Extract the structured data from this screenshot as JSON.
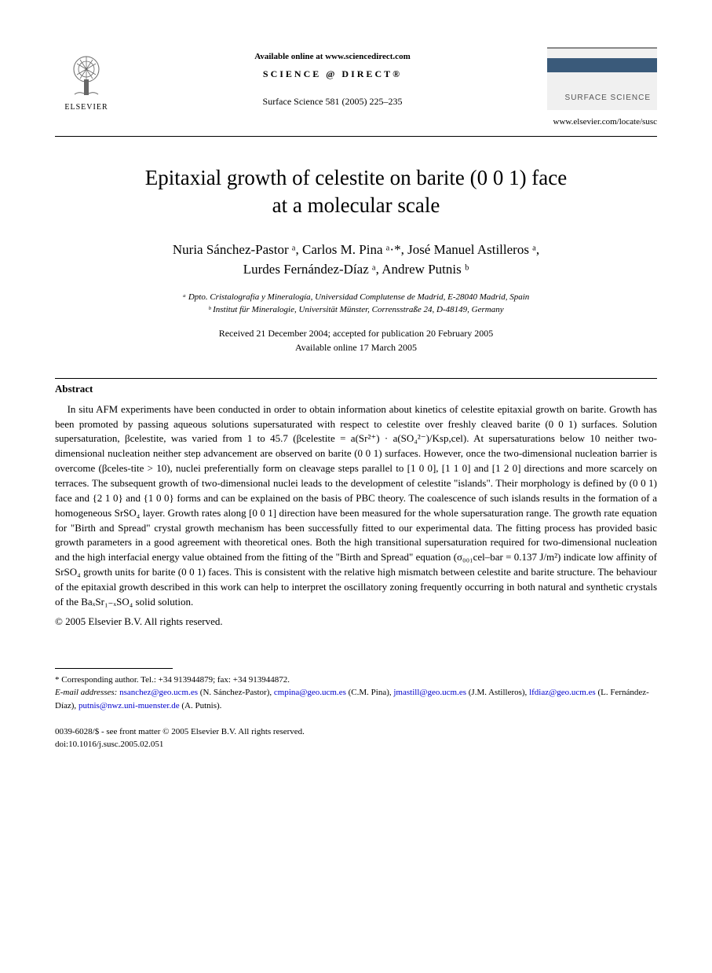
{
  "header": {
    "elsevier_label": "ELSEVIER",
    "available_online": "Available online at www.sciencedirect.com",
    "sciencedirect": "SCIENCE @ DIRECT®",
    "journal_ref": "Surface Science 581 (2005) 225–235",
    "journal_box_title": "SURFACE SCIENCE",
    "journal_url": "www.elsevier.com/locate/susc"
  },
  "title_line1": "Epitaxial growth of celestite on barite (0 0 1) face",
  "title_line2": "at a molecular scale",
  "authors_line1": "Nuria Sánchez-Pastor ᵃ, Carlos M. Pina ᵃ·*, José Manuel Astilleros ᵃ,",
  "authors_line2": "Lurdes Fernández-Díaz ᵃ, Andrew Putnis ᵇ",
  "affiliation_a": "ᵃ Dpto. Cristalografía y Mineralogía, Universidad Complutense de Madrid, E-28040 Madrid, Spain",
  "affiliation_b": "ᵇ Institut für Mineralogie, Universität Münster, Corrensstraße 24, D-48149, Germany",
  "dates_line1": "Received 21 December 2004; accepted for publication 20 February 2005",
  "dates_line2": "Available online 17 March 2005",
  "abstract_heading": "Abstract",
  "abstract_body": "In situ AFM experiments have been conducted in order to obtain information about kinetics of celestite epitaxial growth on barite. Growth has been promoted by passing aqueous solutions supersaturated with respect to celestite over freshly cleaved barite (0 0 1) surfaces. Solution supersaturation, βcelestite, was varied from 1 to 45.7 (βcelestite = a(Sr²⁺) · a(SO₄²⁻)/Ksp,cel). At supersaturations below 10 neither two-dimensional nucleation neither step advancement are observed on barite (0 0 1) surfaces. However, once the two-dimensional nucleation barrier is overcome (βceles-tite > 10), nuclei preferentially form on cleavage steps parallel to [1 0 0], [1 1 0] and [1 2 0] directions and more scarcely on terraces. The subsequent growth of two-dimensional nuclei leads to the development of celestite \"islands\". Their morphology is defined by (0 0 1) face and {2 1 0} and {1 0 0} forms and can be explained on the basis of PBC theory. The coalescence of such islands results in the formation of a homogeneous SrSO₄ layer. Growth rates along [0 0 1] direction have been measured for the whole supersaturation range. The growth rate equation for \"Birth and Spread\" crystal growth mechanism has been successfully fitted to our experimental data. The fitting process has provided basic growth parameters in a good agreement with theoretical ones. Both the high transitional supersaturation required for two-dimensional nucleation and the high interfacial energy value obtained from the fitting of the \"Birth and Spread\" equation (σ₀₀₁cel–bar = 0.137 J/m²) indicate low affinity of SrSO₄ growth units for barite (0 0 1) faces. This is consistent with the relative high mismatch between celestite and barite structure. The behaviour of the epitaxial growth described in this work can help to interpret the oscillatory zoning frequently occurring in both natural and synthetic crystals of the BaₓSr₁₋ₓSO₄ solid solution.",
  "copyright": "© 2005 Elsevier B.V. All rights reserved.",
  "corresponding": "* Corresponding author. Tel.: +34 913944879; fax: +34 913944872.",
  "email_label": "E-mail addresses:",
  "emails": [
    {
      "addr": "nsanchez@geo.ucm.es",
      "who": "(N. Sánchez-Pastor)"
    },
    {
      "addr": "cmpina@geo.ucm.es",
      "who": "(C.M. Pina)"
    },
    {
      "addr": "jmastill@geo.ucm.es",
      "who": "(J.M. Astilleros)"
    },
    {
      "addr": "lfdiaz@geo.ucm.es",
      "who": "(L. Fernández-Díaz)"
    },
    {
      "addr": "putnis@nwz.uni-muenster.de",
      "who": "(A. Putnis)"
    }
  ],
  "front_matter": "0039-6028/$ - see front matter © 2005 Elsevier B.V. All rights reserved.",
  "doi": "doi:10.1016/j.susc.2005.02.051"
}
